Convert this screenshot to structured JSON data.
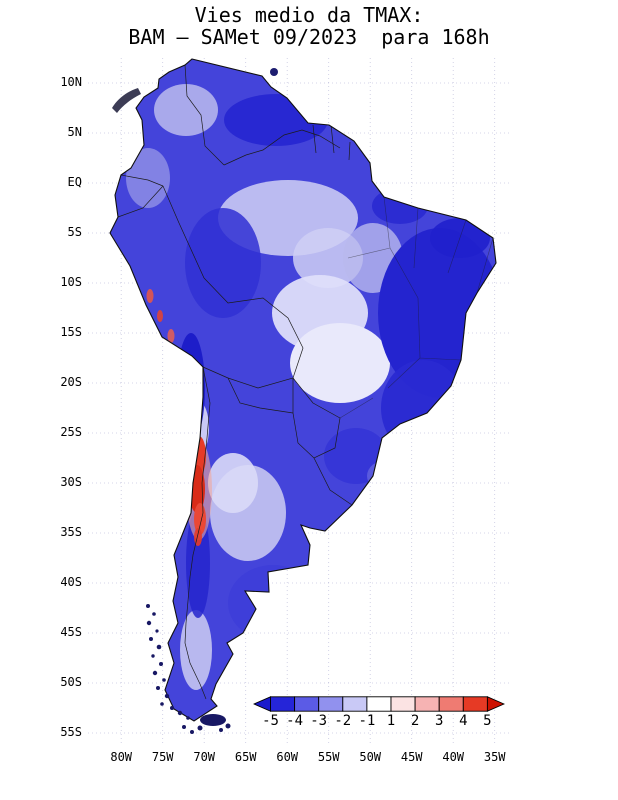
{
  "title": {
    "line1": "Vies medio da TMAX:",
    "line2": "BAM – SAMet 09/2023  para 168h"
  },
  "axes": {
    "lat_labels": [
      "10N",
      "5N",
      "EQ",
      "5S",
      "10S",
      "15S",
      "20S",
      "25S",
      "30S",
      "35S",
      "40S",
      "45S",
      "50S",
      "55S"
    ],
    "lon_labels": [
      "80W",
      "75W",
      "70W",
      "65W",
      "60W",
      "55W",
      "50W",
      "45W",
      "40W",
      "35W"
    ]
  },
  "colorbar": {
    "tick_labels": [
      "-5",
      "-4",
      "-3",
      "-2",
      "-1",
      "1",
      "2",
      "3",
      "4",
      "5"
    ],
    "segment_colors": [
      "#2525d8",
      "#5b5be6",
      "#9191ee",
      "#c9c9f6",
      "#ffffff",
      "#fbe3e3",
      "#f6b3b3",
      "#ef7b72",
      "#e63a25"
    ],
    "arrow_left_color": "#1a1acc",
    "arrow_right_color": "#cc1100"
  }
}
